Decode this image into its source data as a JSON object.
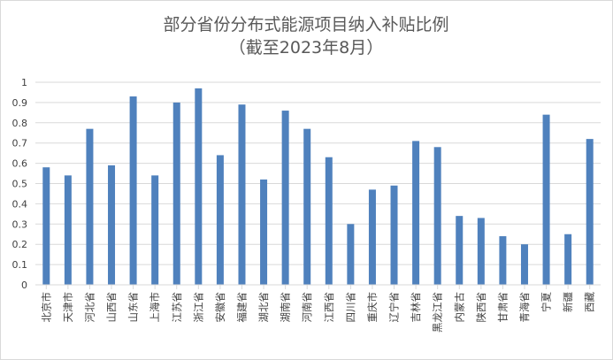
{
  "chart_data": {
    "type": "bar",
    "title": "部分省份分布式能源项目纳入补贴比例",
    "subtitle": "（截至2023年8月）",
    "categories": [
      "北京市",
      "天津市",
      "河北省",
      "山西省",
      "山东省",
      "上海市",
      "江苏省",
      "浙江省",
      "安徽省",
      "福建省",
      "湖北省",
      "湖南省",
      "河南省",
      "江西省",
      "四川省",
      "重庆市",
      "辽宁省",
      "吉林省",
      "黑龙江省",
      "内蒙古",
      "陕西省",
      "甘肃省",
      "青海省",
      "宁夏",
      "新疆",
      "西藏"
    ],
    "values": [
      0.58,
      0.54,
      0.77,
      0.59,
      0.93,
      0.54,
      0.9,
      0.97,
      0.64,
      0.89,
      0.52,
      0.86,
      0.77,
      0.63,
      0.3,
      0.47,
      0.49,
      0.71,
      0.68,
      0.34,
      0.33,
      0.24,
      0.2,
      0.84,
      0.25,
      0.72
    ],
    "yticks": [
      "0",
      "0.1",
      "0.2",
      "0.3",
      "0.4",
      "0.5",
      "0.6",
      "0.7",
      "0.8",
      "0.9",
      "1"
    ],
    "ylim": [
      0,
      1
    ],
    "grid": true,
    "bar_color": "#4f81bd",
    "grid_color": "#d9d9d9"
  }
}
